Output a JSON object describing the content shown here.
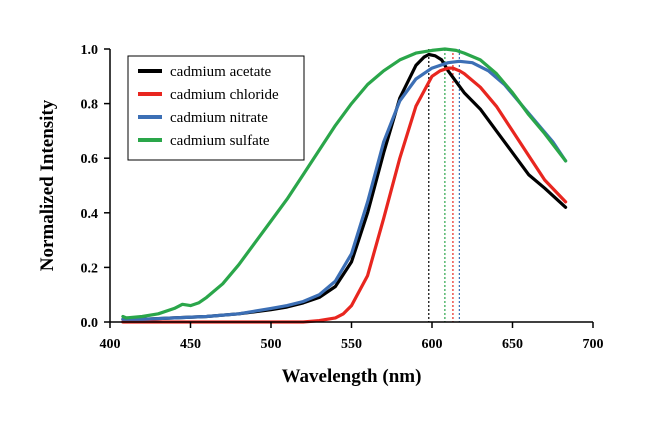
{
  "chart_data": {
    "type": "line",
    "title": "",
    "xlabel": "Wavelength (nm)",
    "ylabel": "Normalized Intensity",
    "xlim": [
      400,
      700
    ],
    "ylim": [
      0.0,
      1.0
    ],
    "xticks": [
      400,
      450,
      500,
      550,
      600,
      650,
      700
    ],
    "yticks": [
      0.0,
      0.2,
      0.4,
      0.6,
      0.8,
      1.0
    ],
    "xtick_labels": [
      "400",
      "450",
      "500",
      "550",
      "600",
      "650",
      "700"
    ],
    "ytick_labels": [
      "0.0",
      "0.2",
      "0.4",
      "0.6",
      "0.8",
      "1.0"
    ],
    "grid": false,
    "legend_position": "top-left",
    "series": [
      {
        "name": "cadmium acetate",
        "color": "#000000",
        "peak_line": 598,
        "x": [
          408,
          420,
          440,
          460,
          480,
          500,
          510,
          520,
          530,
          540,
          550,
          560,
          570,
          580,
          590,
          595,
          598,
          602,
          606,
          610,
          620,
          630,
          640,
          650,
          660,
          670,
          683
        ],
        "y": [
          0.01,
          0.01,
          0.015,
          0.02,
          0.03,
          0.045,
          0.055,
          0.07,
          0.09,
          0.13,
          0.22,
          0.4,
          0.62,
          0.82,
          0.94,
          0.97,
          0.98,
          0.975,
          0.96,
          0.92,
          0.84,
          0.78,
          0.7,
          0.62,
          0.54,
          0.49,
          0.42
        ]
      },
      {
        "name": "cadmium chloride",
        "color": "#e8261f",
        "peak_line": 613,
        "x": [
          408,
          440,
          480,
          520,
          530,
          540,
          545,
          550,
          560,
          570,
          580,
          590,
          600,
          605,
          610,
          613,
          617,
          620,
          630,
          640,
          650,
          660,
          670,
          683
        ],
        "y": [
          0.0,
          0.0,
          0.0,
          0.0,
          0.005,
          0.015,
          0.03,
          0.06,
          0.17,
          0.38,
          0.6,
          0.79,
          0.9,
          0.92,
          0.93,
          0.93,
          0.92,
          0.91,
          0.86,
          0.79,
          0.7,
          0.61,
          0.52,
          0.44
        ]
      },
      {
        "name": "cadmium nitrate",
        "color": "#3c6fb5",
        "peak_line": 617,
        "x": [
          408,
          420,
          440,
          460,
          480,
          500,
          510,
          520,
          530,
          540,
          550,
          560,
          570,
          580,
          590,
          600,
          610,
          617,
          625,
          635,
          645,
          655,
          665,
          675,
          683
        ],
        "y": [
          0.01,
          0.01,
          0.015,
          0.02,
          0.03,
          0.05,
          0.06,
          0.075,
          0.1,
          0.15,
          0.25,
          0.44,
          0.66,
          0.81,
          0.89,
          0.93,
          0.95,
          0.955,
          0.95,
          0.92,
          0.87,
          0.8,
          0.73,
          0.66,
          0.59
        ]
      },
      {
        "name": "cadmium sulfate",
        "color": "#2aa64a",
        "peak_line": 608,
        "x": [
          408,
          410,
          420,
          430,
          440,
          445,
          450,
          455,
          460,
          470,
          480,
          490,
          500,
          510,
          520,
          530,
          540,
          550,
          560,
          570,
          580,
          590,
          600,
          608,
          615,
          620,
          630,
          640,
          650,
          660,
          670,
          683
        ],
        "y": [
          0.02,
          0.015,
          0.02,
          0.03,
          0.05,
          0.065,
          0.06,
          0.07,
          0.09,
          0.14,
          0.21,
          0.29,
          0.37,
          0.45,
          0.54,
          0.63,
          0.72,
          0.8,
          0.87,
          0.92,
          0.96,
          0.985,
          0.995,
          1.0,
          0.995,
          0.985,
          0.96,
          0.91,
          0.84,
          0.76,
          0.69,
          0.59
        ]
      }
    ]
  }
}
